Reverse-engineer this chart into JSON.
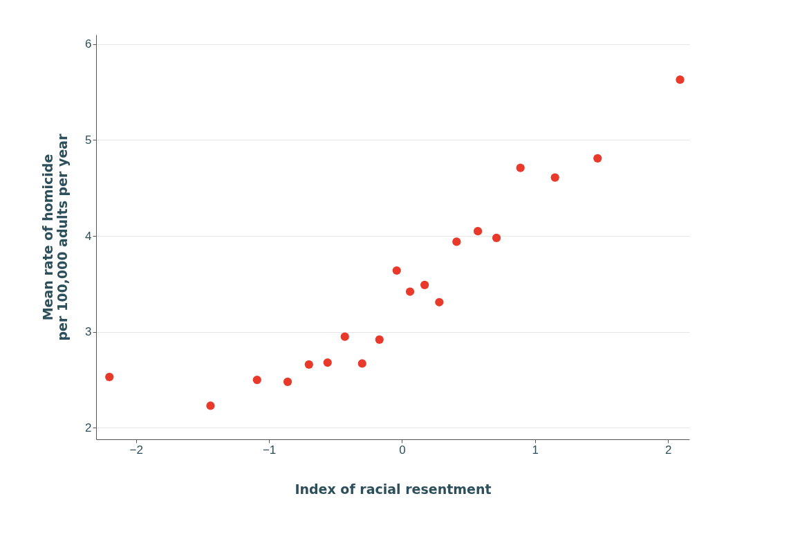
{
  "chart_data": {
    "type": "scatter",
    "xlabel": "Index of racial resentment",
    "ylabel": "Mean rate of homicide\nper 100,000 adults per year",
    "x": [
      -2.2,
      -1.44,
      -1.09,
      -0.86,
      -0.7,
      -0.56,
      -0.43,
      -0.3,
      -0.17,
      -0.04,
      0.06,
      0.17,
      0.28,
      0.41,
      0.57,
      0.71,
      0.89,
      1.15,
      1.47,
      2.09
    ],
    "series": [
      {
        "color": "#e8392a",
        "values": [
          2.53,
          2.23,
          2.5,
          2.48,
          2.66,
          2.68,
          2.95,
          2.67,
          2.92,
          3.64,
          3.42,
          3.49,
          3.31,
          3.94,
          4.05,
          3.98,
          4.71,
          4.61,
          4.81,
          5.63
        ]
      }
    ],
    "xlim": [
      -2.3,
      2.16
    ],
    "ylim": [
      1.88,
      6.1
    ],
    "xticks": [
      -2,
      -1,
      0,
      1,
      2
    ],
    "yticks": [
      2,
      3,
      4,
      5,
      6
    ],
    "grid": "y",
    "marker": "circle",
    "legend": false
  }
}
